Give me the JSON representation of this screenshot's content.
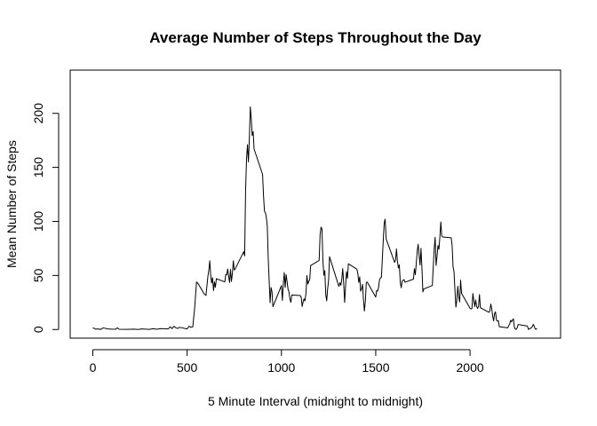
{
  "chart_data": {
    "type": "line",
    "title": "Average Number of Steps Throughout the Day",
    "xlabel": "5 Minute Interval (midnight to midnight)",
    "ylabel": "Mean Number of Steps",
    "xlim": [
      -120,
      2480
    ],
    "ylim": [
      -8,
      240
    ],
    "x_ticks": [
      0,
      500,
      1000,
      1500,
      2000
    ],
    "y_ticks": [
      0,
      50,
      100,
      150,
      200
    ],
    "grid": false,
    "series": [
      {
        "color": "#000000",
        "points": [
          [
            0,
            1.7
          ],
          [
            15,
            0.3
          ],
          [
            30,
            0.5
          ],
          [
            40,
            0
          ],
          [
            55,
            1.5
          ],
          [
            80,
            0.5
          ],
          [
            100,
            0.3
          ],
          [
            120,
            0.2
          ],
          [
            130,
            1.5
          ],
          [
            140,
            0.2
          ],
          [
            180,
            0.1
          ],
          [
            200,
            0.2
          ],
          [
            220,
            0.3
          ],
          [
            240,
            0
          ],
          [
            260,
            0.5
          ],
          [
            300,
            0.1
          ],
          [
            320,
            0.7
          ],
          [
            340,
            0.2
          ],
          [
            360,
            0.8
          ],
          [
            400,
            0.5
          ],
          [
            410,
            2.5
          ],
          [
            420,
            0.8
          ],
          [
            430,
            3.0
          ],
          [
            440,
            1.5
          ],
          [
            450,
            1.0
          ],
          [
            460,
            2.0
          ],
          [
            500,
            0.5
          ],
          [
            510,
            3.0
          ],
          [
            520,
            2.0
          ],
          [
            530,
            2.5
          ],
          [
            540,
            20.0
          ],
          [
            550,
            44.0
          ],
          [
            560,
            42.0
          ],
          [
            570,
            39.0
          ],
          [
            580,
            36.0
          ],
          [
            590,
            33.0
          ],
          [
            600,
            31.5
          ],
          [
            610,
            49.0
          ],
          [
            615,
            54.5
          ],
          [
            620,
            63.5
          ],
          [
            625,
            50.0
          ],
          [
            630,
            43.0
          ],
          [
            635,
            48.0
          ],
          [
            640,
            36.0
          ],
          [
            645,
            44.0
          ],
          [
            650,
            39.0
          ],
          [
            655,
            47.0
          ],
          [
            700,
            44.0
          ],
          [
            705,
            51.0
          ],
          [
            710,
            50.5
          ],
          [
            715,
            56.0
          ],
          [
            720,
            49.5
          ],
          [
            725,
            43.5
          ],
          [
            730,
            55.5
          ],
          [
            735,
            44.5
          ],
          [
            740,
            52.0
          ],
          [
            745,
            63.5
          ],
          [
            750,
            55.0
          ],
          [
            755,
            56.0
          ],
          [
            800,
            72.0
          ],
          [
            805,
            68.0
          ],
          [
            810,
            129.0
          ],
          [
            815,
            158.0
          ],
          [
            820,
            171.0
          ],
          [
            825,
            155.0
          ],
          [
            830,
            177.0
          ],
          [
            835,
            206.0
          ],
          [
            840,
            195.0
          ],
          [
            845,
            179.5
          ],
          [
            850,
            183.0
          ],
          [
            855,
            167.0
          ],
          [
            900,
            143.5
          ],
          [
            905,
            124.0
          ],
          [
            910,
            109.5
          ],
          [
            915,
            108.0
          ],
          [
            920,
            103.7
          ],
          [
            925,
            95.9
          ],
          [
            930,
            66.2
          ],
          [
            935,
            45.2
          ],
          [
            940,
            24.8
          ],
          [
            945,
            38.8
          ],
          [
            950,
            34.9
          ],
          [
            955,
            21.1
          ],
          [
            1000,
            40.6
          ],
          [
            1005,
            26.9
          ],
          [
            1010,
            42.4
          ],
          [
            1015,
            52.7
          ],
          [
            1020,
            38.9
          ],
          [
            1025,
            50.8
          ],
          [
            1030,
            44.3
          ],
          [
            1035,
            37.4
          ],
          [
            1040,
            34.7
          ],
          [
            1045,
            28.3
          ],
          [
            1050,
            25.1
          ],
          [
            1055,
            31.9
          ],
          [
            1100,
            31.4
          ],
          [
            1105,
            29.7
          ],
          [
            1110,
            21.3
          ],
          [
            1115,
            25.5
          ],
          [
            1120,
            28.4
          ],
          [
            1125,
            26.5
          ],
          [
            1130,
            33.4
          ],
          [
            1135,
            49.9
          ],
          [
            1140,
            42.0
          ],
          [
            1145,
            44.6
          ],
          [
            1150,
            46.0
          ],
          [
            1155,
            59.2
          ],
          [
            1200,
            63.9
          ],
          [
            1205,
            87.7
          ],
          [
            1210,
            94.8
          ],
          [
            1215,
            92.8
          ],
          [
            1220,
            63.4
          ],
          [
            1225,
            50.2
          ],
          [
            1230,
            54.5
          ],
          [
            1235,
            32.4
          ],
          [
            1240,
            26.5
          ],
          [
            1245,
            37.7
          ],
          [
            1250,
            45.1
          ],
          [
            1255,
            67.3
          ],
          [
            1300,
            42.3
          ],
          [
            1305,
            39.9
          ],
          [
            1310,
            43.3
          ],
          [
            1315,
            40.98
          ],
          [
            1320,
            46.2
          ],
          [
            1325,
            56.4
          ],
          [
            1330,
            42.8
          ],
          [
            1335,
            25.1
          ],
          [
            1340,
            39.97
          ],
          [
            1345,
            53.5
          ],
          [
            1350,
            47.3
          ],
          [
            1355,
            60.8
          ],
          [
            1400,
            55.8
          ],
          [
            1405,
            51.96
          ],
          [
            1410,
            43.6
          ],
          [
            1415,
            48.7
          ],
          [
            1420,
            35.5
          ],
          [
            1425,
            37.5
          ],
          [
            1430,
            41.8
          ],
          [
            1435,
            27.5
          ],
          [
            1440,
            17.1
          ],
          [
            1445,
            26.1
          ],
          [
            1450,
            43.6
          ],
          [
            1455,
            43.8
          ],
          [
            1500,
            30.0
          ],
          [
            1505,
            36.1
          ],
          [
            1510,
            35.5
          ],
          [
            1515,
            38.8
          ],
          [
            1520,
            45.96
          ],
          [
            1525,
            47.75
          ],
          [
            1530,
            48.1
          ],
          [
            1535,
            65.3
          ],
          [
            1540,
            82.9
          ],
          [
            1545,
            98.7
          ],
          [
            1550,
            102.1
          ],
          [
            1555,
            83.96
          ],
          [
            1600,
            62.1
          ],
          [
            1605,
            64.1
          ],
          [
            1610,
            74.5
          ],
          [
            1615,
            63.2
          ],
          [
            1620,
            56.9
          ],
          [
            1625,
            59.8
          ],
          [
            1630,
            43.9
          ],
          [
            1635,
            38.6
          ],
          [
            1640,
            44.7
          ],
          [
            1645,
            45.5
          ],
          [
            1650,
            46.2
          ],
          [
            1655,
            43.7
          ],
          [
            1700,
            46.6
          ],
          [
            1705,
            56.3
          ],
          [
            1710,
            50.7
          ],
          [
            1715,
            61.2
          ],
          [
            1720,
            72.7
          ],
          [
            1725,
            78.9
          ],
          [
            1730,
            68.9
          ],
          [
            1735,
            59.7
          ],
          [
            1740,
            75.1
          ],
          [
            1745,
            56.5
          ],
          [
            1750,
            34.8
          ],
          [
            1755,
            37.5
          ],
          [
            1800,
            40.7
          ],
          [
            1805,
            58.0
          ],
          [
            1810,
            74.7
          ],
          [
            1815,
            85.3
          ],
          [
            1820,
            59.3
          ],
          [
            1825,
            67.8
          ],
          [
            1830,
            77.7
          ],
          [
            1835,
            74.2
          ],
          [
            1840,
            85.3
          ],
          [
            1845,
            99.5
          ],
          [
            1850,
            86.6
          ],
          [
            1855,
            85.6
          ],
          [
            1900,
            84.9
          ],
          [
            1905,
            77.8
          ],
          [
            1910,
            58.0
          ],
          [
            1915,
            53.4
          ],
          [
            1920,
            36.3
          ],
          [
            1925,
            20.7
          ],
          [
            1930,
            27.4
          ],
          [
            1935,
            40.0
          ],
          [
            1940,
            30.2
          ],
          [
            1945,
            25.5
          ],
          [
            1950,
            45.7
          ],
          [
            1955,
            33.5
          ],
          [
            2000,
            19.6
          ],
          [
            2005,
            19.0
          ],
          [
            2010,
            19.3
          ],
          [
            2015,
            33.3
          ],
          [
            2020,
            26.8
          ],
          [
            2025,
            21.2
          ],
          [
            2030,
            27.3
          ],
          [
            2035,
            21.3
          ],
          [
            2040,
            19.5
          ],
          [
            2045,
            21.3
          ],
          [
            2050,
            32.3
          ],
          [
            2055,
            20.2
          ],
          [
            2100,
            15.9
          ],
          [
            2105,
            17.2
          ],
          [
            2110,
            23.5
          ],
          [
            2115,
            19.2
          ],
          [
            2120,
            12.5
          ],
          [
            2125,
            8.0
          ],
          [
            2130,
            14.7
          ],
          [
            2135,
            16.3
          ],
          [
            2140,
            8.7
          ],
          [
            2145,
            7.8
          ],
          [
            2150,
            8.1
          ],
          [
            2155,
            2.6
          ],
          [
            2200,
            1.5
          ],
          [
            2205,
            3.7
          ],
          [
            2210,
            4.8
          ],
          [
            2215,
            8.5
          ],
          [
            2220,
            7.1
          ],
          [
            2225,
            8.7
          ],
          [
            2230,
            9.8
          ],
          [
            2235,
            2.2
          ],
          [
            2240,
            0.3
          ],
          [
            2245,
            0.1
          ],
          [
            2250,
            1.6
          ],
          [
            2255,
            4.6
          ],
          [
            2300,
            3.3
          ],
          [
            2305,
            2.8
          ],
          [
            2310,
            0
          ],
          [
            2315,
            0.8
          ],
          [
            2320,
            1.0
          ],
          [
            2325,
            1.6
          ],
          [
            2330,
            2.6
          ],
          [
            2335,
            4.7
          ],
          [
            2340,
            3.3
          ],
          [
            2345,
            0.6
          ],
          [
            2350,
            0.2
          ],
          [
            2355,
            1.1
          ]
        ]
      }
    ]
  }
}
